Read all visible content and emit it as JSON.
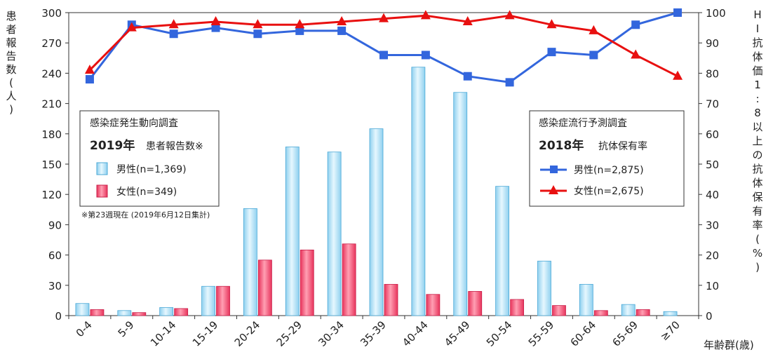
{
  "chart_data": {
    "type": "bar+line",
    "categories": [
      "0-4",
      "5-9",
      "10-14",
      "15-19",
      "20-24",
      "25-29",
      "30-34",
      "35-39",
      "40-44",
      "45-49",
      "50-54",
      "55-59",
      "60-64",
      "65-69",
      "≥70"
    ],
    "xlabel": "年齢群(歳)",
    "ylabel_left": "患者報告数(人)",
    "ylabel_right": "HI抗体価1:8以上の抗体保有率(%)",
    "ylim_left": [
      0,
      300
    ],
    "yticks_left": [
      0,
      30,
      60,
      90,
      120,
      150,
      180,
      210,
      240,
      270,
      300
    ],
    "ylim_right": [
      0,
      100
    ],
    "yticks_right": [
      0,
      10,
      20,
      30,
      40,
      50,
      60,
      70,
      80,
      90,
      100
    ],
    "bar_series": [
      {
        "name": "男性(n=1,369)",
        "color": "#a8dcf4",
        "values": [
          12,
          5,
          8,
          29,
          106,
          167,
          162,
          185,
          246,
          221,
          128,
          54,
          31,
          11,
          4
        ]
      },
      {
        "name": "女性(n=349)",
        "color": "#f06080",
        "values": [
          6,
          3,
          7,
          29,
          55,
          65,
          71,
          31,
          21,
          24,
          16,
          10,
          5,
          6,
          0
        ]
      }
    ],
    "line_series": [
      {
        "name": "男性(n=2,875)",
        "color": "#3366dd",
        "marker": "square",
        "values": [
          78,
          96,
          93,
          95,
          93,
          94,
          94,
          86,
          86,
          79,
          77,
          87,
          86,
          96,
          100
        ]
      },
      {
        "name": "女性(n=2,675)",
        "color": "#e81010",
        "marker": "triangle",
        "values": [
          81,
          95,
          96,
          97,
          96,
          96,
          97,
          98,
          99,
          97,
          99,
          96,
          94,
          86,
          79
        ]
      }
    ],
    "legend_left": {
      "title": "感染症発生動向調査",
      "year": "2019年",
      "subtitle": "患者報告数※",
      "note": "※第23週現在 (2019年6月12日集計)"
    },
    "legend_right": {
      "title": "感染症流行予測調査",
      "year": "2018年",
      "subtitle": "抗体保有率"
    },
    "grid": false
  }
}
